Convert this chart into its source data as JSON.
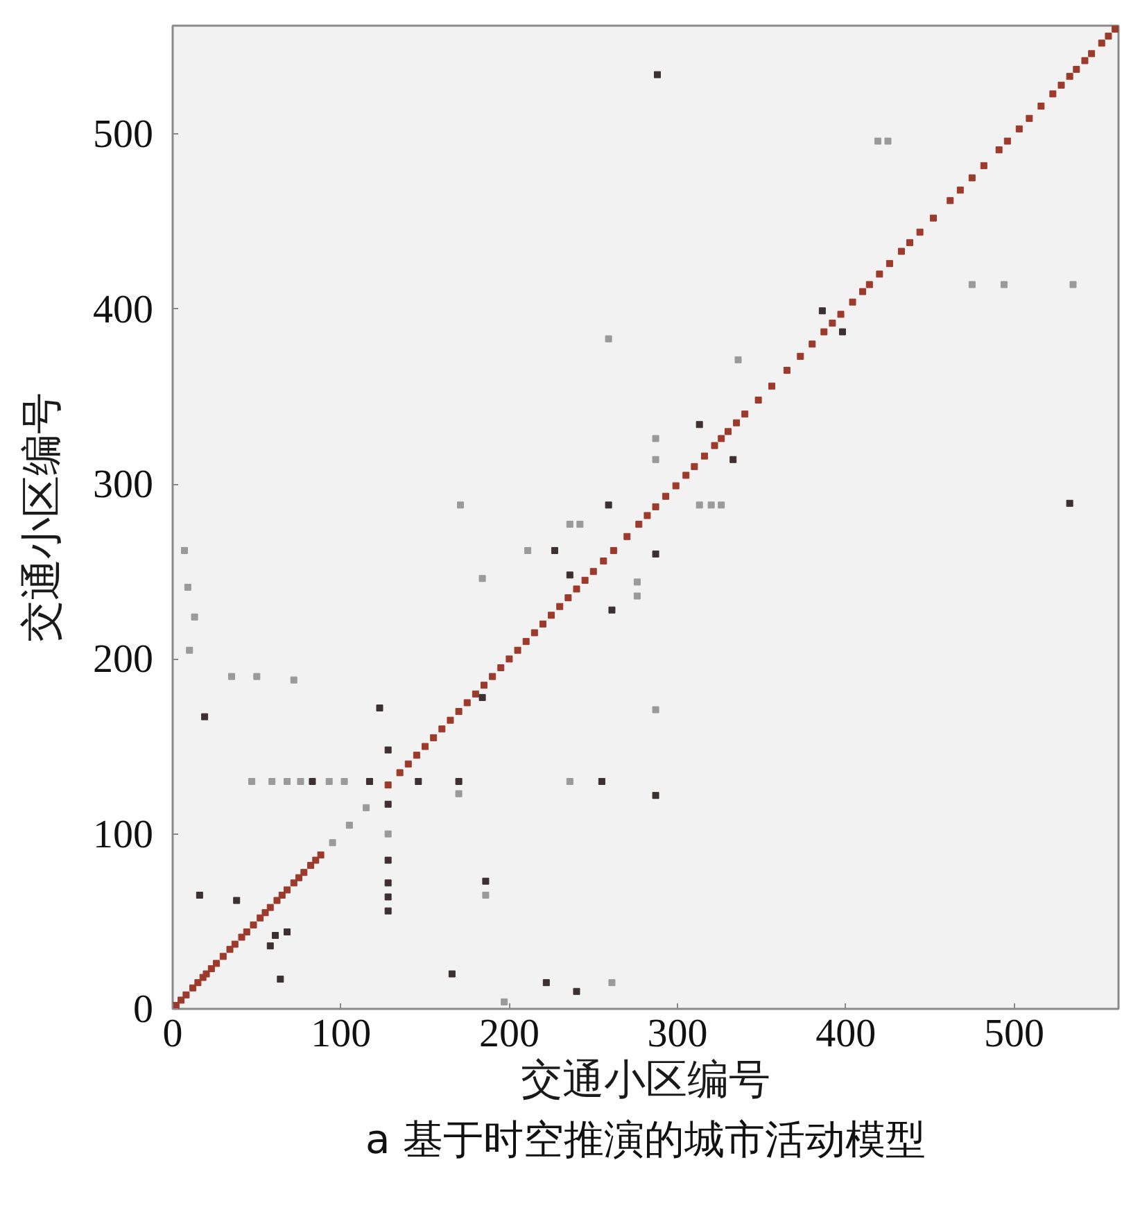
{
  "chart_data": {
    "type": "scatter",
    "xlabel": "交通小区编号",
    "ylabel": "交通小区编号",
    "annotations": [
      "a 基于时空推演的城市活动模型"
    ],
    "xlim": [
      0,
      562
    ],
    "ylim": [
      0,
      562
    ],
    "xticks": [
      0,
      100,
      200,
      300,
      400,
      500
    ],
    "yticks": [
      0,
      100,
      200,
      300,
      400,
      500
    ],
    "marker": "square",
    "series": [
      {
        "color": "#9c3a2c",
        "x": [
          2,
          5,
          8,
          12,
          15,
          18,
          20,
          23,
          26,
          30,
          34,
          37,
          41,
          44,
          48,
          52,
          55,
          58,
          62,
          65,
          68,
          72,
          75,
          78,
          82,
          85,
          88,
          128,
          135,
          140,
          145,
          150,
          155,
          160,
          165,
          170,
          175,
          180,
          185,
          190,
          195,
          200,
          205,
          210,
          215,
          220,
          225,
          230,
          235,
          240,
          245,
          250,
          256,
          262,
          270,
          277,
          282,
          287,
          293,
          299,
          305,
          310,
          316,
          322,
          326,
          330,
          335,
          340,
          348,
          356,
          365,
          373,
          380,
          387,
          392,
          397,
          404,
          410,
          414,
          420,
          426,
          433,
          438,
          444,
          452,
          462,
          468,
          475,
          482,
          491,
          496,
          503,
          509,
          516,
          523,
          528,
          533,
          537,
          542,
          546,
          552,
          556,
          560
        ],
        "values": [
          2,
          5,
          8,
          12,
          15,
          18,
          20,
          23,
          26,
          30,
          34,
          37,
          41,
          44,
          48,
          52,
          55,
          58,
          62,
          65,
          68,
          72,
          75,
          78,
          82,
          85,
          88,
          128,
          135,
          140,
          145,
          150,
          155,
          160,
          165,
          170,
          175,
          180,
          185,
          190,
          195,
          200,
          205,
          210,
          215,
          220,
          225,
          230,
          235,
          240,
          245,
          250,
          256,
          262,
          270,
          277,
          282,
          287,
          293,
          299,
          305,
          310,
          316,
          322,
          326,
          330,
          335,
          340,
          348,
          356,
          365,
          373,
          380,
          387,
          392,
          397,
          404,
          410,
          414,
          420,
          426,
          433,
          438,
          444,
          452,
          462,
          468,
          475,
          482,
          491,
          496,
          503,
          509,
          516,
          523,
          528,
          533,
          537,
          542,
          546,
          552,
          556,
          560
        ]
      },
      {
        "color": "#3c3030",
        "x": [
          227,
          287,
          236,
          261,
          19,
          128,
          146,
          117,
          83,
          128,
          128,
          186,
          166,
          222,
          64,
          16,
          38,
          58,
          61,
          287,
          184,
          123,
          386,
          398,
          313,
          333,
          288,
          533,
          259,
          240,
          68,
          255,
          170,
          128,
          128,
          128
        ],
        "values": [
          262,
          260,
          248,
          228,
          167,
          148,
          130,
          130,
          130,
          117,
          85,
          73,
          20,
          15,
          17,
          65,
          62,
          36,
          42,
          122,
          178,
          172,
          399,
          387,
          334,
          314,
          534,
          289,
          288,
          10,
          44,
          130,
          130,
          64,
          72,
          56
        ]
      },
      {
        "color": "#9a9a9a",
        "x": [
          95,
          105,
          115,
          9,
          13,
          7,
          35,
          50,
          72,
          47,
          59,
          68,
          76,
          93,
          102,
          236,
          276,
          287,
          197,
          261,
          170,
          313,
          320,
          326,
          287,
          287,
          211,
          236,
          242,
          336,
          259,
          171,
          184,
          276,
          419,
          425,
          475,
          494,
          535,
          128,
          10,
          186
        ],
        "values": [
          95,
          105,
          115,
          241,
          224,
          262,
          190,
          190,
          188,
          130,
          130,
          130,
          130,
          130,
          130,
          130,
          244,
          171,
          4,
          15,
          123,
          288,
          288,
          288,
          326,
          314,
          262,
          277,
          277,
          371,
          383,
          288,
          246,
          236,
          496,
          496,
          414,
          414,
          414,
          100,
          205,
          65
        ]
      }
    ]
  }
}
